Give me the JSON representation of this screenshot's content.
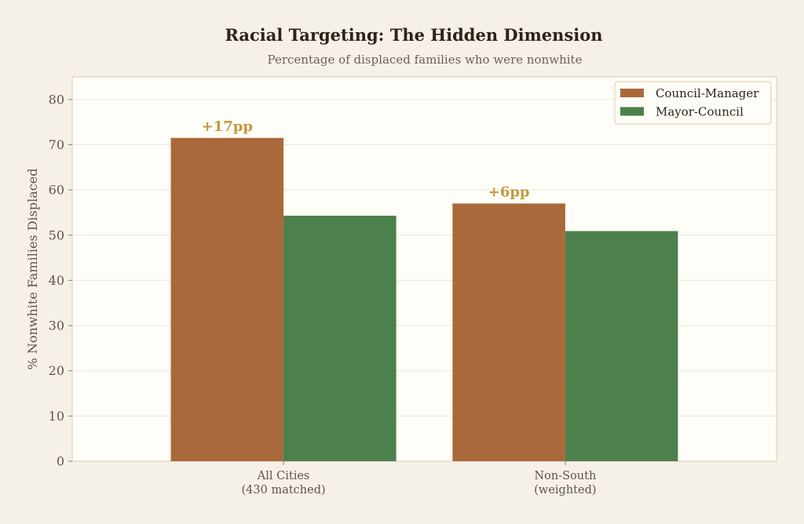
{
  "chart_data": {
    "type": "bar",
    "title": "Racial Targeting: The Hidden Dimension",
    "subtitle": "Percentage of displaced families who were nonwhite",
    "ylabel": "% Nonwhite Families Displaced",
    "xlabel": "",
    "ylim": [
      0,
      85
    ],
    "yticks": [
      0,
      10,
      20,
      30,
      40,
      50,
      60,
      70,
      80
    ],
    "grid": "horizontal",
    "legend_position": "top-right",
    "categories": [
      [
        "All Cities",
        "(430 matched)"
      ],
      [
        "Non-South",
        "(weighted)"
      ]
    ],
    "series": [
      {
        "name": "Council-Manager",
        "color": "#a9693a",
        "values": [
          71.5,
          57.0
        ]
      },
      {
        "name": "Mayor-Council",
        "color": "#4c804c",
        "values": [
          54.3,
          50.9
        ]
      }
    ],
    "annotations": [
      {
        "category_index": 0,
        "series_index": 0,
        "text": "+17pp"
      },
      {
        "category_index": 1,
        "series_index": 0,
        "text": "+6pp"
      }
    ]
  }
}
